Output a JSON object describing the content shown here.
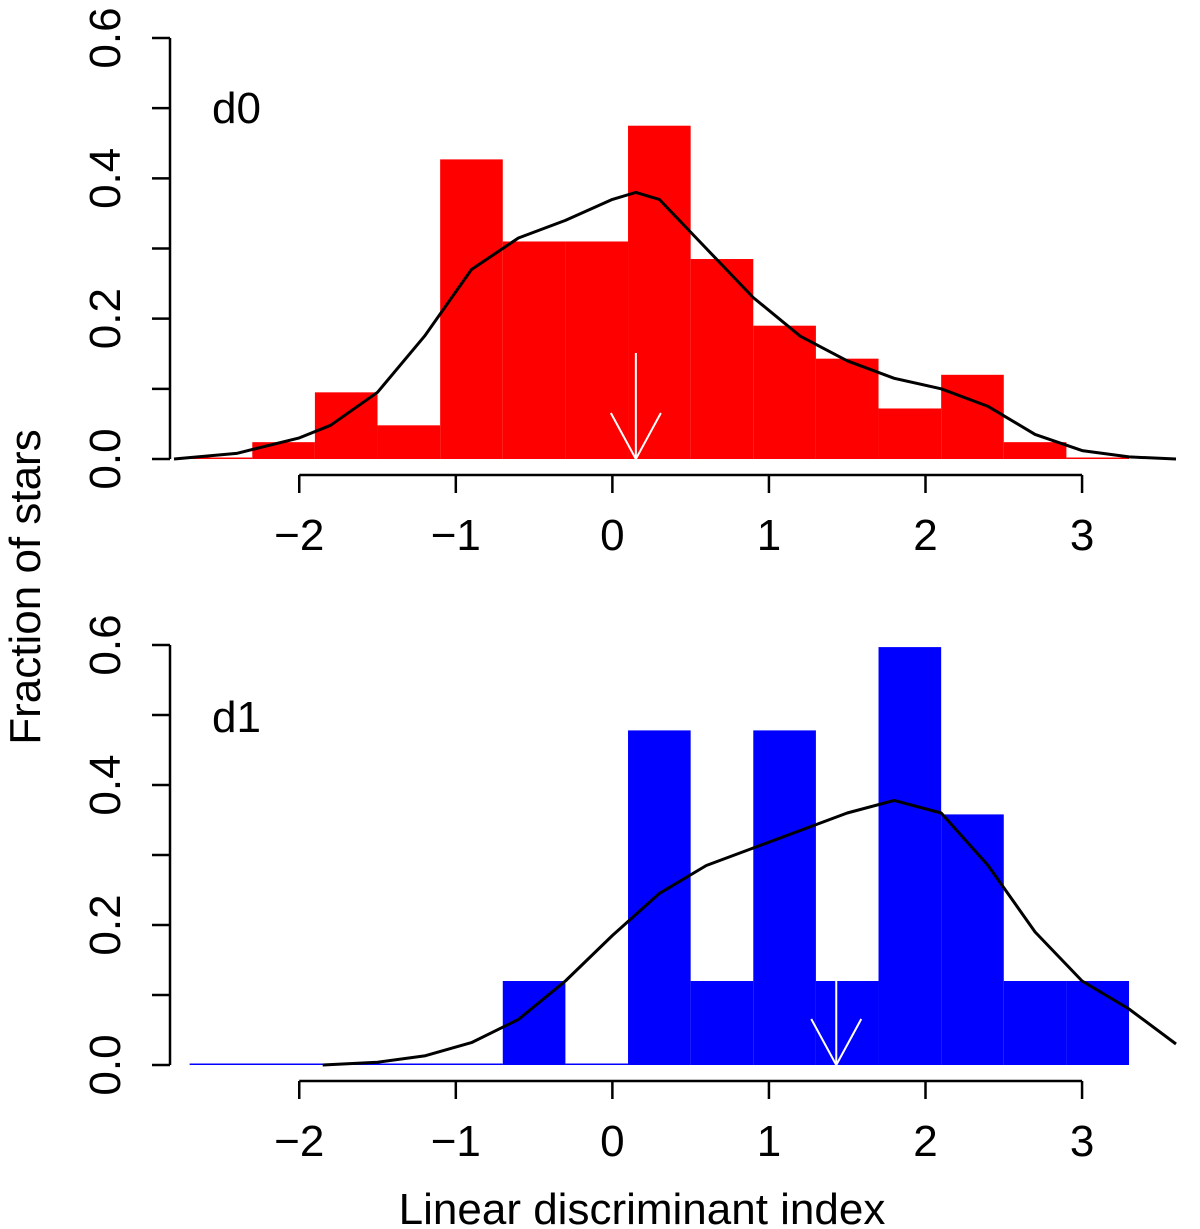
{
  "chart_data": {
    "type": "histogram",
    "ylabel": "Fraction of stars",
    "xlabel": "Linear discriminant index",
    "panels": [
      {
        "label": "d0",
        "color": "#ff0000",
        "xlim": [
          -2.8,
          3.6
        ],
        "ylim": [
          0,
          0.6
        ],
        "xticks": [
          -2,
          -1,
          0,
          1,
          2,
          3
        ],
        "xtick_labels": [
          "−2",
          "−1",
          "0",
          "1",
          "2",
          "3"
        ],
        "yticks": [
          0,
          0.1,
          0.2,
          0.3,
          0.4,
          0.5,
          0.6
        ],
        "ytick_labels": [
          "0.0",
          "",
          "0.2",
          "",
          "0.4",
          "",
          "0.6"
        ],
        "bin_edges": [
          -2.7,
          -2.3,
          -1.9,
          -1.5,
          -1.1,
          -0.7,
          -0.3,
          0.1,
          0.5,
          0.9,
          1.3,
          1.7,
          2.1,
          2.5,
          2.9,
          3.3
        ],
        "bar_heights": [
          0.0,
          0.024,
          0.095,
          0.048,
          0.427,
          0.31,
          0.31,
          0.475,
          0.285,
          0.19,
          0.143,
          0.072,
          0.12,
          0.024,
          0.0
        ],
        "marker_x": 0.15,
        "density_curve": {
          "x": [
            -2.8,
            -2.4,
            -2.0,
            -1.8,
            -1.5,
            -1.2,
            -0.9,
            -0.6,
            -0.3,
            0.0,
            0.15,
            0.3,
            0.6,
            0.9,
            1.2,
            1.5,
            1.8,
            2.1,
            2.4,
            2.7,
            3.0,
            3.3,
            3.6
          ],
          "y": [
            0.0,
            0.008,
            0.03,
            0.048,
            0.095,
            0.175,
            0.27,
            0.315,
            0.34,
            0.37,
            0.38,
            0.37,
            0.3,
            0.23,
            0.175,
            0.14,
            0.115,
            0.1,
            0.075,
            0.035,
            0.012,
            0.003,
            0.0
          ]
        }
      },
      {
        "label": "d1",
        "color": "#0000ff",
        "xlim": [
          -2.8,
          3.6
        ],
        "ylim": [
          0,
          0.6
        ],
        "xticks": [
          -2,
          -1,
          0,
          1,
          2,
          3
        ],
        "xtick_labels": [
          "−2",
          "−1",
          "0",
          "1",
          "2",
          "3"
        ],
        "yticks": [
          0,
          0.1,
          0.2,
          0.3,
          0.4,
          0.5,
          0.6
        ],
        "ytick_labels": [
          "0.0",
          "",
          "0.2",
          "",
          "0.4",
          "",
          "0.6"
        ],
        "bin_edges": [
          -2.7,
          -0.7,
          -0.3,
          0.1,
          0.5,
          0.9,
          1.3,
          1.7,
          2.1,
          2.5,
          2.9,
          3.3
        ],
        "bar_heights": [
          0.0,
          0.12,
          0.0,
          0.478,
          0.12,
          0.478,
          0.12,
          0.597,
          0.358,
          0.12,
          0.12
        ],
        "marker_x": 1.43,
        "density_curve": {
          "x": [
            -1.85,
            -1.5,
            -1.2,
            -0.9,
            -0.6,
            -0.3,
            0.0,
            0.3,
            0.6,
            0.9,
            1.2,
            1.5,
            1.8,
            2.1,
            2.4,
            2.7,
            3.0,
            3.3,
            3.6
          ],
          "y": [
            0.0,
            0.004,
            0.013,
            0.032,
            0.065,
            0.12,
            0.185,
            0.245,
            0.285,
            0.31,
            0.335,
            0.36,
            0.378,
            0.36,
            0.285,
            0.19,
            0.12,
            0.08,
            0.03
          ]
        }
      }
    ]
  }
}
